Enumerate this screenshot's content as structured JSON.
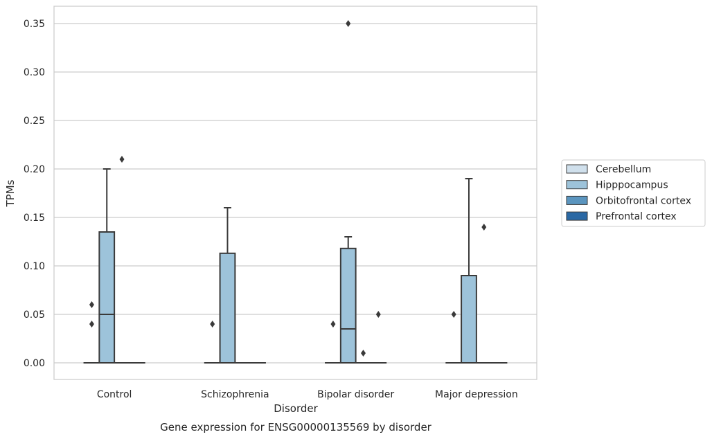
{
  "chart_data": {
    "type": "box",
    "xlabel": "Disorder",
    "ylabel": "TPMs",
    "caption": "Gene expression for ENSG00000135569 by disorder",
    "categories": [
      "Control",
      "Schizophrenia",
      "Bipolar disorder",
      "Major depression"
    ],
    "yticks": [
      "0.00",
      "0.05",
      "0.10",
      "0.15",
      "0.20",
      "0.25",
      "0.30",
      "0.35"
    ],
    "ylim": [
      -0.017,
      0.368
    ],
    "grid": true,
    "legend_position": "right",
    "series": [
      {
        "name": "Cerebellum",
        "color": "#d0e0ec",
        "boxes": [
          {
            "q1": 0,
            "median": 0,
            "q3": 0,
            "whisker_low": 0,
            "whisker_high": 0,
            "outliers": [
              0.04,
              0.06
            ]
          },
          {
            "q1": 0,
            "median": 0,
            "q3": 0,
            "whisker_low": 0,
            "whisker_high": 0,
            "outliers": [
              0.04
            ]
          },
          {
            "q1": 0,
            "median": 0,
            "q3": 0,
            "whisker_low": 0,
            "whisker_high": 0,
            "outliers": [
              0.04
            ]
          },
          {
            "q1": 0,
            "median": 0,
            "q3": 0,
            "whisker_low": 0,
            "whisker_high": 0,
            "outliers": [
              0.05
            ]
          }
        ]
      },
      {
        "name": "Hipppocampus",
        "color": "#9dc3da",
        "boxes": [
          {
            "q1": 0,
            "median": 0.05,
            "q3": 0.135,
            "whisker_low": 0,
            "whisker_high": 0.2,
            "outliers": []
          },
          {
            "q1": 0,
            "median": 0,
            "q3": 0.113,
            "whisker_low": 0,
            "whisker_high": 0.16,
            "outliers": []
          },
          {
            "q1": 0,
            "median": 0.035,
            "q3": 0.118,
            "whisker_low": 0,
            "whisker_high": 0.13,
            "outliers": [
              0.35
            ]
          },
          {
            "q1": 0,
            "median": 0,
            "q3": 0.09,
            "whisker_low": 0,
            "whisker_high": 0.19,
            "outliers": []
          }
        ]
      },
      {
        "name": "Orbitofrontal cortex",
        "color": "#5b95bf",
        "boxes": [
          {
            "q1": 0,
            "median": 0,
            "q3": 0,
            "whisker_low": 0,
            "whisker_high": 0,
            "outliers": [
              0.21
            ]
          },
          {
            "q1": 0,
            "median": 0,
            "q3": 0,
            "whisker_low": 0,
            "whisker_high": 0,
            "outliers": []
          },
          {
            "q1": 0,
            "median": 0,
            "q3": 0,
            "whisker_low": 0,
            "whisker_high": 0,
            "outliers": [
              0.01
            ]
          },
          {
            "q1": 0,
            "median": 0,
            "q3": 0,
            "whisker_low": 0,
            "whisker_high": 0,
            "outliers": [
              0.14
            ]
          }
        ]
      },
      {
        "name": "Prefrontal cortex",
        "color": "#2a68a4",
        "boxes": [
          {
            "q1": 0,
            "median": 0,
            "q3": 0,
            "whisker_low": 0,
            "whisker_high": 0,
            "outliers": []
          },
          {
            "q1": 0,
            "median": 0,
            "q3": 0,
            "whisker_low": 0,
            "whisker_high": 0,
            "outliers": []
          },
          {
            "q1": 0,
            "median": 0,
            "q3": 0,
            "whisker_low": 0,
            "whisker_high": 0,
            "outliers": [
              0.05
            ]
          },
          {
            "q1": 0,
            "median": 0,
            "q3": 0,
            "whisker_low": 0,
            "whisker_high": 0,
            "outliers": []
          }
        ]
      }
    ]
  }
}
